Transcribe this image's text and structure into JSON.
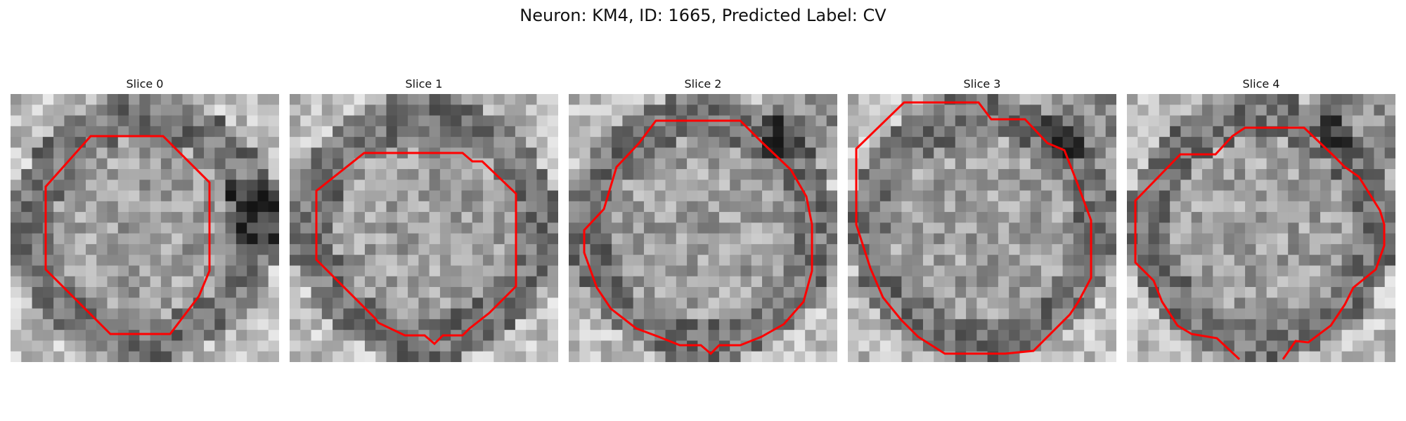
{
  "figure": {
    "title": "Neuron: KM4, ID: 1665, Predicted Label: CV"
  },
  "panels": [
    {
      "title": "Slice 0"
    },
    {
      "title": "Slice 1"
    },
    {
      "title": "Slice 2"
    },
    {
      "title": "Slice 3"
    },
    {
      "title": "Slice 4"
    }
  ],
  "colors": {
    "contour": "#ff0000",
    "background": "#ffffff"
  }
}
